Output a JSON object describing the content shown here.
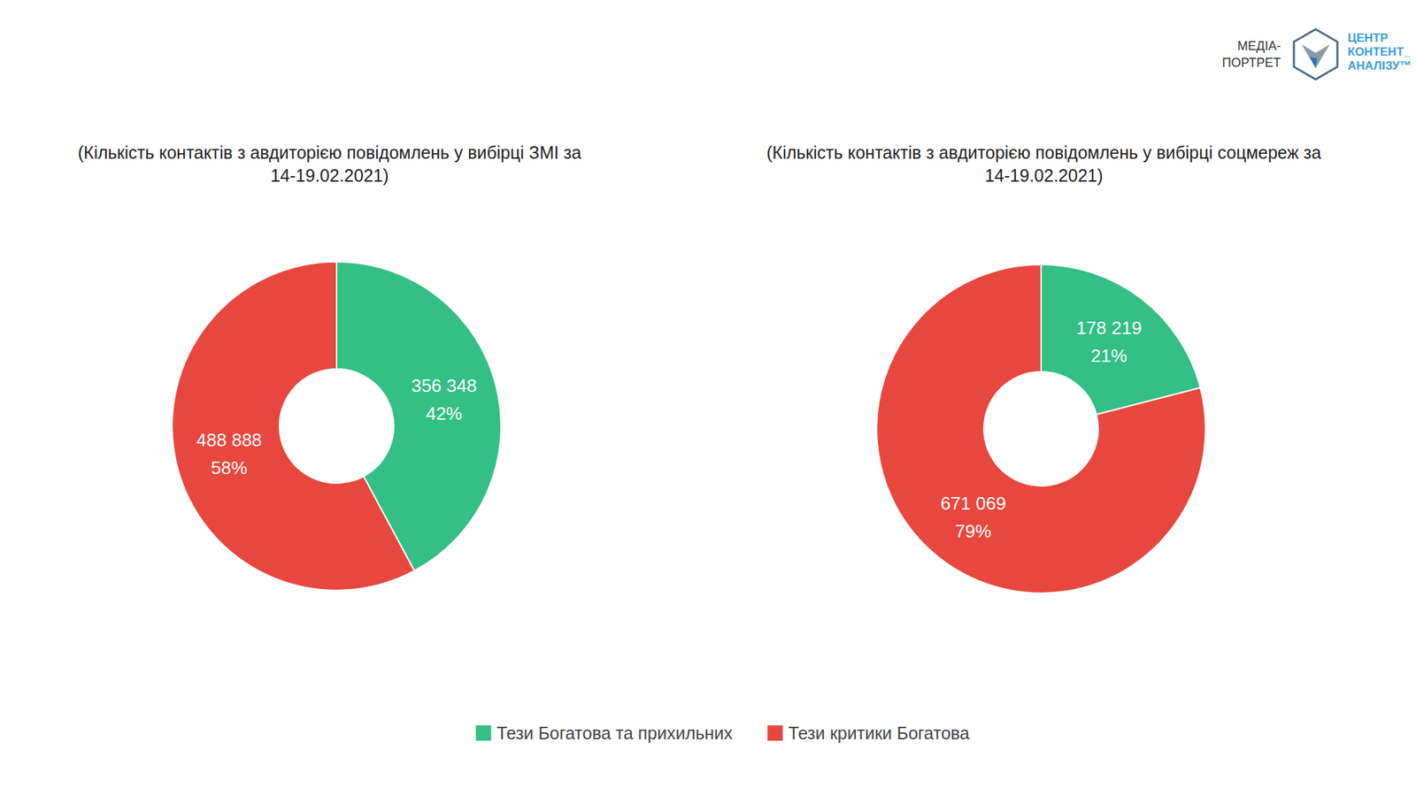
{
  "logo": {
    "left": [
      "МЕДІА-",
      "ПОРТРЕТ"
    ],
    "right": [
      "ЦЕНТР",
      "КОНТЕНТ_",
      "АНАЛІЗУ™"
    ]
  },
  "chart_data": [
    {
      "type": "pie",
      "title": "(Кількість контактів з авдиторією повідомлень у вибірці ЗМІ за 14-19.02.2021)",
      "categories": [
        "Тези Богатова та прихильних",
        "Тези критики Богатова"
      ],
      "values": [
        356348,
        488888
      ],
      "value_labels": [
        "356 348",
        "488 888"
      ],
      "shares": [
        42,
        58
      ],
      "share_labels": [
        "42%",
        "58%"
      ],
      "colors": [
        "#33bf85",
        "#e8473f"
      ],
      "data_labels": true,
      "legend": "bottom"
    },
    {
      "type": "pie",
      "title": "(Кількість контактів з авдиторією повідомлень у вибірці соцмереж за 14-19.02.2021)",
      "categories": [
        "Тези Богатова та прихильних",
        "Тези критики Богатова"
      ],
      "values": [
        178219,
        671069
      ],
      "value_labels": [
        "178 219",
        "671 069"
      ],
      "shares": [
        21,
        79
      ],
      "share_labels": [
        "21%",
        "79%"
      ],
      "colors": [
        "#33bf85",
        "#e8473f"
      ],
      "data_labels": true,
      "legend": "bottom"
    }
  ]
}
